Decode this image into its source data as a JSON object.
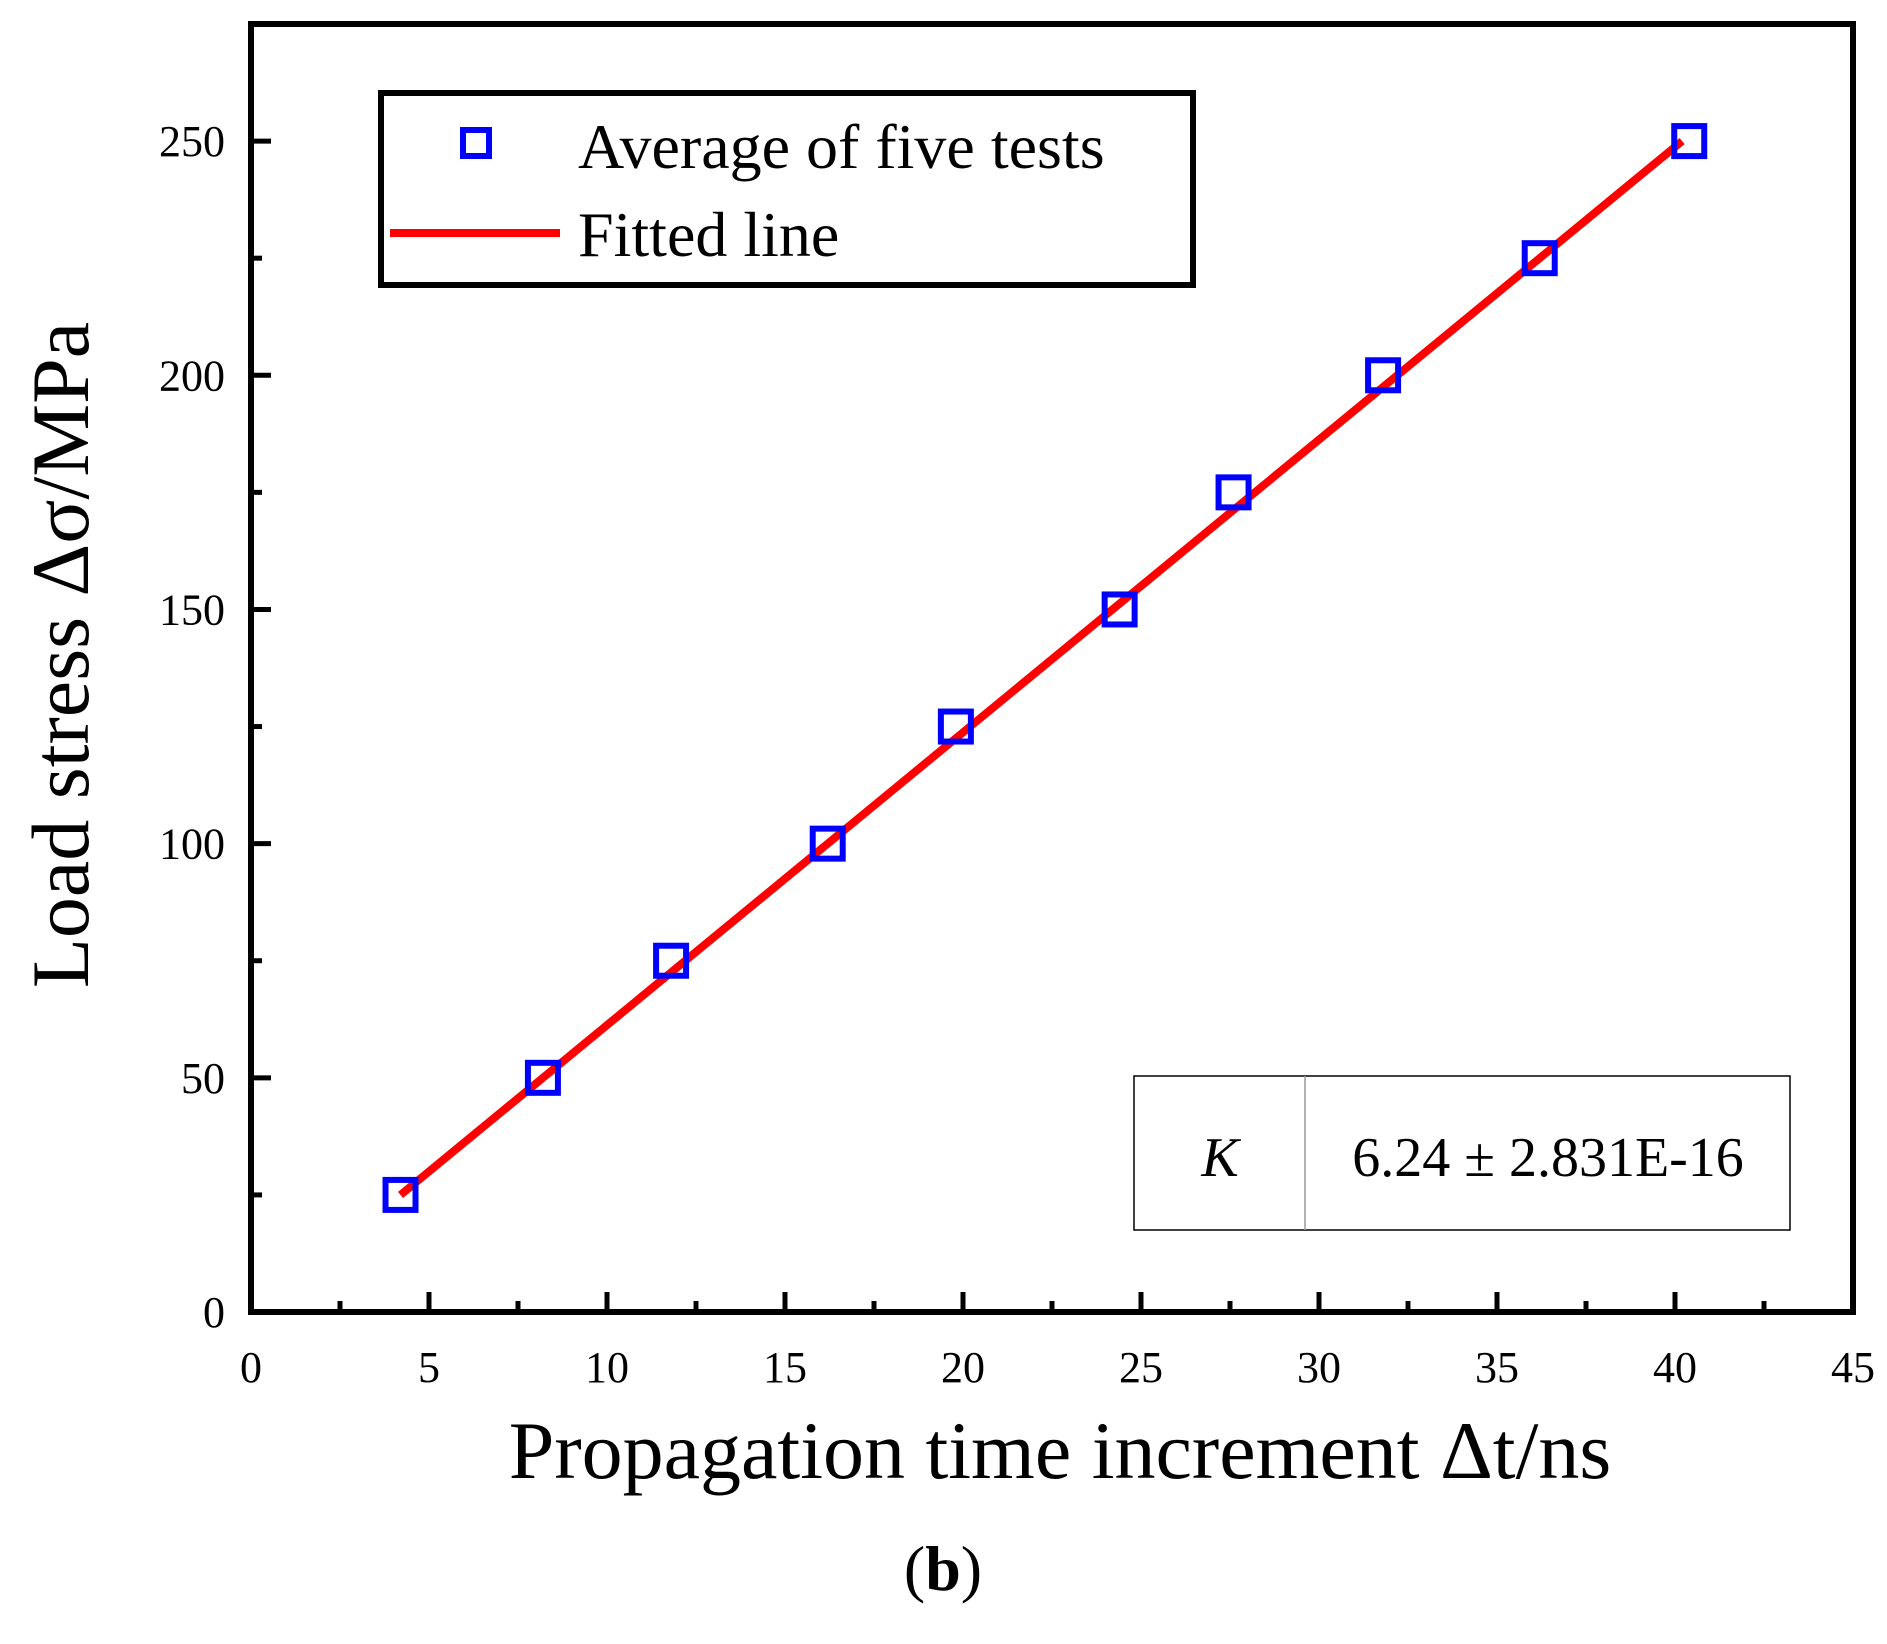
{
  "chart_data": {
    "type": "scatter",
    "xlabel": "Propagation time increment Δt/ns",
    "ylabel": "Load stress Δσ/MPa",
    "xlim": [
      0,
      45
    ],
    "ylim": [
      0,
      275
    ],
    "x_ticks": [
      0,
      5,
      10,
      15,
      20,
      25,
      30,
      35,
      40,
      45
    ],
    "y_ticks": [
      0,
      50,
      100,
      150,
      200,
      250
    ],
    "x_tick_labels": [
      "0",
      "5",
      "10",
      "15",
      "20",
      "25",
      "30",
      "35",
      "40",
      "45"
    ],
    "y_tick_labels": [
      "0",
      "50",
      "100",
      "150",
      "200",
      "250"
    ],
    "grid": false,
    "legend_position": "top-left",
    "series": [
      {
        "name": "Average of five tests",
        "kind": "scatter",
        "marker": "open-square",
        "color": "#0000ff",
        "x": [
          4.2,
          8.2,
          11.8,
          16.2,
          19.8,
          24.4,
          27.6,
          31.8,
          36.2,
          40.4
        ],
        "y": [
          25,
          50,
          75,
          100,
          125,
          150,
          175,
          200,
          225,
          250
        ]
      },
      {
        "name": "Fitted line",
        "kind": "line",
        "color": "#ff0000",
        "x": [
          4.2,
          40.2
        ],
        "y": [
          25,
          250
        ]
      }
    ],
    "stats_table": {
      "label": "K",
      "value": "6.24 ± 2.831E-16"
    },
    "panel_label": "b"
  }
}
